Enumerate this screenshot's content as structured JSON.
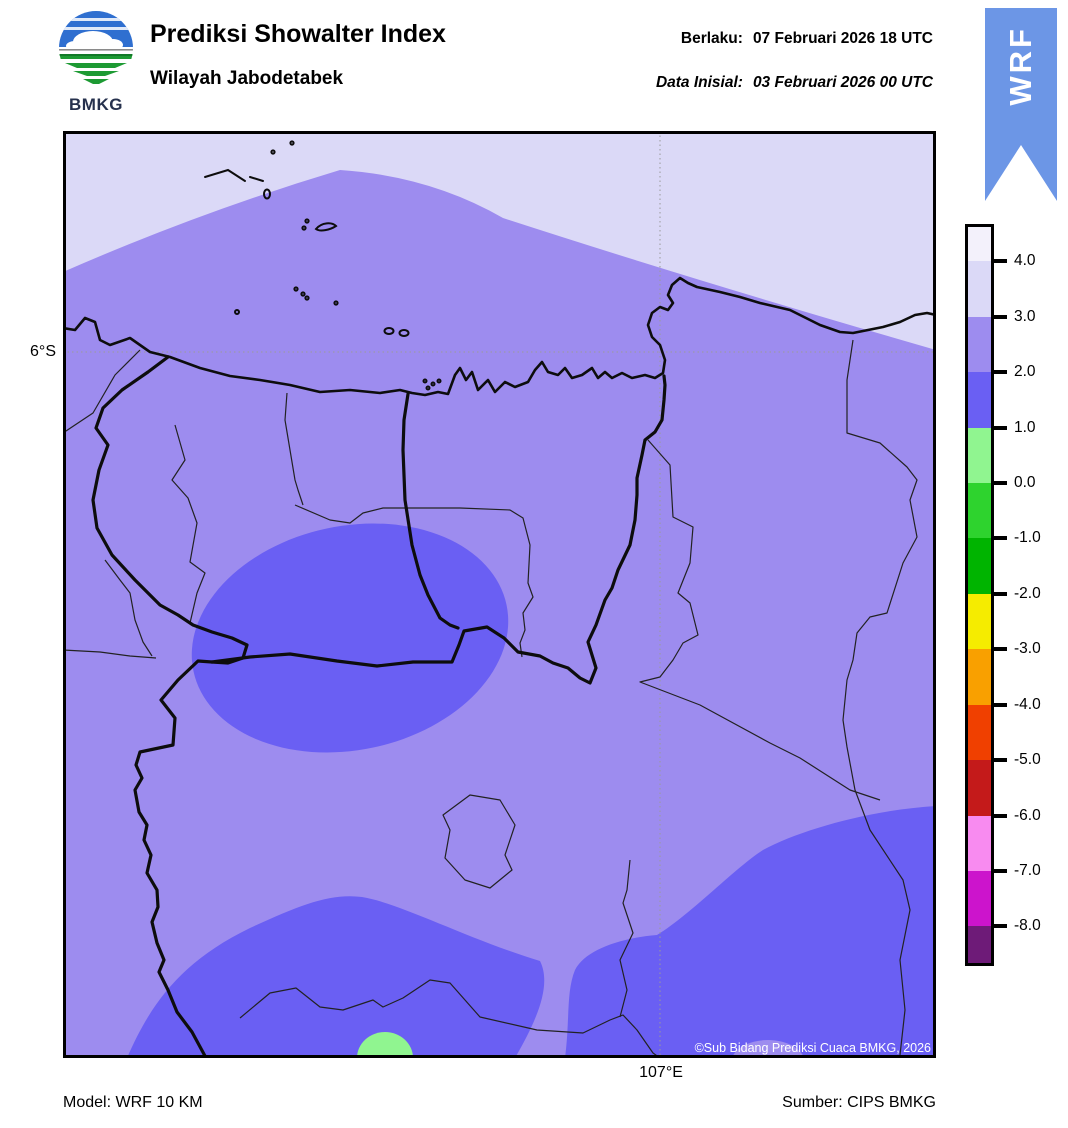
{
  "header": {
    "title": "Prediksi Showalter Index",
    "subtitle": "Wilayah Jabodetabek",
    "valid_label": "Berlaku:",
    "valid_value": "07 Februari 2026 18 UTC",
    "initial_label": "Data Inisial:",
    "initial_value": "03 Februari 2026 00 UTC",
    "logo_text": "BMKG",
    "banner_label": "WRF",
    "banner_color": "#6C96E6"
  },
  "map": {
    "lat_label": "6°S",
    "lon_label": "107°E",
    "copyright": "©Sub Bidang Prediksi Cuaca BMKG, 2026",
    "regions_depicted": {
      "sea_far_north": "Showalter Index 3 to 4",
      "most_of_domain": "Showalter Index 2 to 3",
      "west_central_oval_and_south": "Showalter Index 1 to 2",
      "small_spot_bottom_center": "Showalter Index 0 to 1"
    }
  },
  "colorbar": {
    "tick_labels": [
      "4.0",
      "3.0",
      "2.0",
      "1.0",
      "0.0",
      "-1.0",
      "-2.0",
      "-3.0",
      "-4.0",
      "-5.0",
      "-6.0",
      "-7.0",
      "-8.0"
    ],
    "segment_colors_top_to_bottom": [
      "#F3F1FB",
      "#DBD9F7",
      "#9D8CEF",
      "#6A5FF3",
      "#90F590",
      "#2ED32E",
      "#00B400",
      "#F5EC00",
      "#F9A000",
      "#F04000",
      "#C41A1A",
      "#F88BF0",
      "#CC14CC",
      "#6E1B78"
    ]
  },
  "footer": {
    "model": "Model: WRF 10 KM",
    "source": "Sumber: CIPS BMKG"
  }
}
